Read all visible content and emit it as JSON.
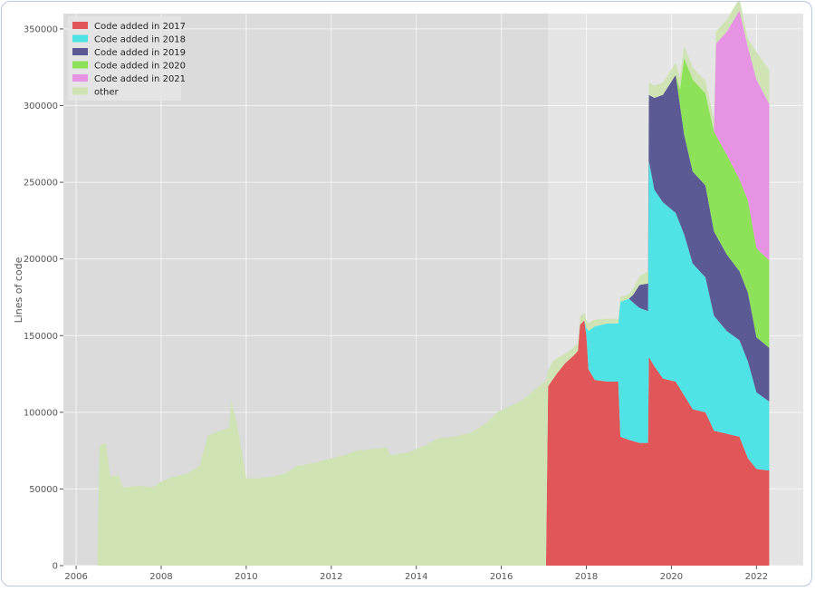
{
  "chart_data": {
    "type": "area",
    "stacked": true,
    "xlabel": "",
    "ylabel": "Lines of code",
    "xlim": [
      2005.7,
      2023.1
    ],
    "ylim": [
      0,
      360000
    ],
    "grid": true,
    "legend_position": "top-left",
    "shaded_region": {
      "from": 2005.7,
      "to": 2017.1
    },
    "xticks": [
      2006,
      2008,
      2010,
      2012,
      2014,
      2016,
      2018,
      2020,
      2022
    ],
    "xtick_labels": [
      "2006",
      "2008",
      "2010",
      "2012",
      "2014",
      "2016",
      "2018",
      "2020",
      "2022"
    ],
    "yticks": [
      0,
      50000,
      100000,
      150000,
      200000,
      250000,
      300000,
      350000
    ],
    "ytick_labels": [
      "0",
      "50000",
      "100000",
      "150000",
      "200000",
      "250000",
      "300000",
      "350000"
    ],
    "series": [
      {
        "name": "Code added in 2017",
        "color": "#e15759",
        "points": [
          [
            2017.05,
            0
          ],
          [
            2017.1,
            117000
          ],
          [
            2017.3,
            125000
          ],
          [
            2017.5,
            132000
          ],
          [
            2017.7,
            137000
          ],
          [
            2017.8,
            140000
          ],
          [
            2017.85,
            157000
          ],
          [
            2017.95,
            160000
          ],
          [
            2018.0,
            150000
          ],
          [
            2018.05,
            128000
          ],
          [
            2018.2,
            121000
          ],
          [
            2018.5,
            120000
          ],
          [
            2018.75,
            120000
          ],
          [
            2018.8,
            84000
          ],
          [
            2019.0,
            82000
          ],
          [
            2019.25,
            80000
          ],
          [
            2019.45,
            80000
          ],
          [
            2019.47,
            136000
          ],
          [
            2019.6,
            130000
          ],
          [
            2019.8,
            122000
          ],
          [
            2020.1,
            120000
          ],
          [
            2020.3,
            111000
          ],
          [
            2020.5,
            102000
          ],
          [
            2020.8,
            100000
          ],
          [
            2021.0,
            88000
          ],
          [
            2021.3,
            86000
          ],
          [
            2021.6,
            84000
          ],
          [
            2021.8,
            70000
          ],
          [
            2022.0,
            63000
          ],
          [
            2022.3,
            62000
          ]
        ]
      },
      {
        "name": "Code added in 2018",
        "color": "#4fe3e5",
        "points": [
          [
            2017.05,
            0
          ],
          [
            2017.1,
            0
          ],
          [
            2017.95,
            0
          ],
          [
            2018.0,
            5000
          ],
          [
            2018.05,
            25000
          ],
          [
            2018.2,
            35000
          ],
          [
            2018.5,
            38000
          ],
          [
            2018.75,
            38000
          ],
          [
            2018.8,
            88000
          ],
          [
            2019.0,
            92000
          ],
          [
            2019.25,
            88000
          ],
          [
            2019.45,
            86000
          ],
          [
            2019.47,
            128000
          ],
          [
            2019.6,
            115000
          ],
          [
            2019.8,
            115000
          ],
          [
            2020.1,
            110000
          ],
          [
            2020.3,
            105000
          ],
          [
            2020.5,
            95000
          ],
          [
            2020.8,
            88000
          ],
          [
            2021.0,
            75000
          ],
          [
            2021.3,
            67000
          ],
          [
            2021.6,
            63000
          ],
          [
            2021.8,
            63000
          ],
          [
            2022.0,
            50000
          ],
          [
            2022.3,
            45000
          ]
        ]
      },
      {
        "name": "Code added in 2019",
        "color": "#5c5a94",
        "points": [
          [
            2017.05,
            0
          ],
          [
            2017.1,
            0
          ],
          [
            2018.75,
            0
          ],
          [
            2019.0,
            0
          ],
          [
            2019.1,
            5000
          ],
          [
            2019.25,
            15000
          ],
          [
            2019.45,
            18000
          ],
          [
            2019.47,
            43000
          ],
          [
            2019.6,
            60000
          ],
          [
            2019.8,
            70000
          ],
          [
            2020.1,
            90000
          ],
          [
            2020.3,
            65000
          ],
          [
            2020.5,
            60000
          ],
          [
            2020.8,
            60000
          ],
          [
            2021.0,
            55000
          ],
          [
            2021.3,
            50000
          ],
          [
            2021.6,
            45000
          ],
          [
            2021.8,
            45000
          ],
          [
            2022.0,
            36000
          ],
          [
            2022.3,
            35000
          ]
        ]
      },
      {
        "name": "Code added in 2020",
        "color": "#8ee25a",
        "points": [
          [
            2017.05,
            0
          ],
          [
            2017.1,
            0
          ],
          [
            2019.47,
            0
          ],
          [
            2020.1,
            0
          ],
          [
            2020.2,
            10000
          ],
          [
            2020.3,
            50000
          ],
          [
            2020.5,
            60000
          ],
          [
            2020.8,
            60000
          ],
          [
            2021.0,
            65000
          ],
          [
            2021.3,
            65000
          ],
          [
            2021.6,
            60000
          ],
          [
            2021.8,
            60000
          ],
          [
            2022.0,
            58000
          ],
          [
            2022.3,
            57000
          ]
        ]
      },
      {
        "name": "Code added in 2021",
        "color": "#e693e4",
        "points": [
          [
            2017.05,
            0
          ],
          [
            2017.1,
            0
          ],
          [
            2020.8,
            0
          ],
          [
            2021.0,
            0
          ],
          [
            2021.05,
            60000
          ],
          [
            2021.3,
            80000
          ],
          [
            2021.6,
            110000
          ],
          [
            2021.8,
            100000
          ],
          [
            2022.0,
            110000
          ],
          [
            2022.3,
            102000
          ]
        ]
      },
      {
        "name": "other",
        "color": "#cfe3b5",
        "points": [
          [
            2006.5,
            0
          ],
          [
            2006.55,
            78000
          ],
          [
            2006.7,
            80000
          ],
          [
            2006.8,
            58000
          ],
          [
            2007.0,
            59000
          ],
          [
            2007.1,
            51000
          ],
          [
            2007.5,
            52000
          ],
          [
            2007.8,
            51000
          ],
          [
            2008.0,
            55000
          ],
          [
            2008.3,
            58000
          ],
          [
            2008.6,
            60000
          ],
          [
            2008.9,
            65000
          ],
          [
            2009.1,
            85000
          ],
          [
            2009.4,
            88000
          ],
          [
            2009.6,
            90000
          ],
          [
            2009.65,
            108000
          ],
          [
            2009.8,
            90000
          ],
          [
            2010.0,
            57000
          ],
          [
            2010.3,
            57000
          ],
          [
            2010.6,
            58000
          ],
          [
            2010.9,
            60000
          ],
          [
            2011.2,
            65000
          ],
          [
            2011.6,
            67000
          ],
          [
            2012.0,
            70000
          ],
          [
            2012.3,
            72000
          ],
          [
            2012.6,
            75000
          ],
          [
            2013.0,
            76000
          ],
          [
            2013.3,
            77000
          ],
          [
            2013.4,
            72000
          ],
          [
            2013.8,
            74000
          ],
          [
            2014.2,
            78000
          ],
          [
            2014.5,
            83000
          ],
          [
            2014.9,
            84000
          ],
          [
            2015.3,
            87000
          ],
          [
            2015.6,
            92000
          ],
          [
            2015.9,
            100000
          ],
          [
            2016.2,
            104000
          ],
          [
            2016.5,
            108000
          ],
          [
            2016.8,
            115000
          ],
          [
            2017.0,
            120000
          ],
          [
            2017.05,
            120000
          ],
          [
            2017.1,
            10000
          ],
          [
            2017.2,
            12000
          ],
          [
            2017.5,
            6000
          ],
          [
            2017.9,
            5000
          ],
          [
            2018.1,
            5000
          ],
          [
            2018.5,
            3000
          ],
          [
            2019.0,
            3000
          ],
          [
            2019.45,
            8000
          ],
          [
            2019.6,
            8000
          ],
          [
            2020.0,
            8000
          ],
          [
            2020.3,
            8000
          ],
          [
            2020.8,
            8000
          ],
          [
            2021.0,
            8000
          ],
          [
            2021.6,
            8000
          ],
          [
            2021.8,
            5000
          ],
          [
            2022.0,
            18000
          ],
          [
            2022.3,
            22000
          ]
        ]
      }
    ]
  }
}
